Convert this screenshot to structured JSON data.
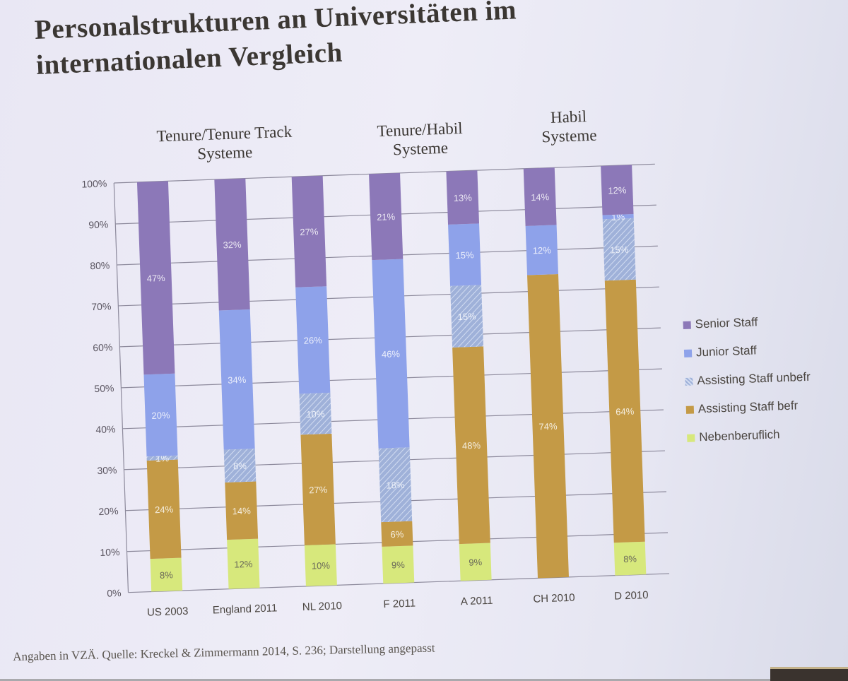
{
  "slide": {
    "title_line1": "Personalstrukturen an Universitäten im",
    "title_line2": "internationalen Vergleich",
    "group_labels": [
      {
        "line1": "Tenure/Tenure Track",
        "line2": "Systeme"
      },
      {
        "line1": "Tenure/Habil",
        "line2": "Systeme"
      },
      {
        "line1": "Habil",
        "line2": "Systeme"
      }
    ],
    "source_note": "Angaben in VZÄ. Quelle: Kreckel & Zimmermann 2014, S. 236; Darstellung angepasst"
  },
  "chart_data": {
    "type": "bar",
    "stacked": true,
    "categories": [
      "US 2003",
      "England 2011",
      "NL 2010",
      "F 2011",
      "A 2011",
      "CH 2010",
      "D 2010"
    ],
    "y_ticks": [
      "0%",
      "10%",
      "20%",
      "30%",
      "40%",
      "50%",
      "60%",
      "70%",
      "80%",
      "90%",
      "100%"
    ],
    "ylim": [
      0,
      100
    ],
    "grid": true,
    "legend_position": "right",
    "series": [
      {
        "name": "Nebenberuflich",
        "color": "#d7e87c",
        "values": [
          8,
          12,
          10,
          9,
          9,
          0,
          8
        ],
        "labels": [
          "8%",
          "12%",
          "10%",
          "9%",
          "9%",
          "",
          "8%"
        ]
      },
      {
        "name": "Assisting Staff befr",
        "color": "#c49a46",
        "values": [
          24,
          14,
          27,
          6,
          48,
          74,
          64
        ],
        "labels": [
          "24%",
          "14%",
          "27%",
          "6%",
          "48%",
          "74%",
          "64%"
        ]
      },
      {
        "name": "Assisting Staff unbefr",
        "color": "#9fb1d9",
        "pattern": "hatch",
        "values": [
          1,
          8,
          10,
          18,
          15,
          0,
          15
        ],
        "labels": [
          "1%",
          "8%",
          "10%",
          "18%",
          "15%",
          "",
          "15%"
        ]
      },
      {
        "name": "Junior Staff",
        "color": "#8ea2ea",
        "values": [
          20,
          34,
          26,
          46,
          15,
          12,
          1
        ],
        "labels": [
          "20%",
          "34%",
          "26%",
          "46%",
          "15%",
          "12%",
          "1%"
        ]
      },
      {
        "name": "Senior Staff",
        "color": "#8c78b8",
        "values": [
          47,
          32,
          27,
          21,
          13,
          14,
          12
        ],
        "labels": [
          "47%",
          "32%",
          "27%",
          "21%",
          "13%",
          "14%",
          "12%"
        ]
      }
    ],
    "legend_order": [
      "Senior Staff",
      "Junior Staff",
      "Assisting Staff unbefr",
      "Assisting Staff befr",
      "Nebenberuflich"
    ]
  }
}
